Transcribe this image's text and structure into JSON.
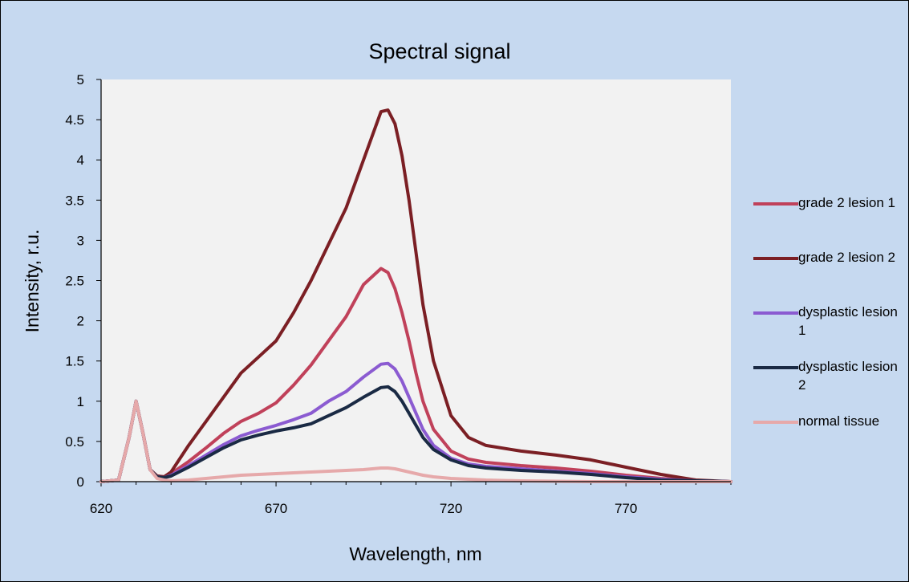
{
  "chart_data": {
    "type": "line",
    "title": "Spectral signal",
    "xlabel": "Wavelength, nm",
    "ylabel": "Intensity, r.u.",
    "xlim": [
      620,
      800
    ],
    "ylim": [
      0,
      5
    ],
    "xticks": [
      620,
      670,
      720,
      770
    ],
    "xtick_labels": [
      "620",
      "670",
      "720",
      "770"
    ],
    "yticks": [
      0,
      0.5,
      1,
      1.5,
      2,
      2.5,
      3,
      3.5,
      4,
      4.5,
      5
    ],
    "ytick_labels": [
      "0",
      "0.5",
      "1",
      "1.5",
      "2",
      "2.5",
      "3",
      "3.5",
      "4",
      "4.5",
      "5"
    ],
    "grid": false,
    "legend_position": "right",
    "plot_background": "#f2f2f2",
    "background": "#c6d9f0",
    "series": [
      {
        "name": "grade 2 lesion 1",
        "color": "#c0415a",
        "x": [
          620,
          625,
          628,
          630,
          632,
          634,
          636,
          638,
          640,
          645,
          650,
          655,
          660,
          665,
          670,
          675,
          680,
          685,
          690,
          695,
          700,
          702,
          704,
          706,
          708,
          710,
          712,
          715,
          720,
          725,
          730,
          740,
          750,
          760,
          770,
          780,
          790,
          800
        ],
        "y": [
          0,
          0.02,
          0.55,
          1.0,
          0.6,
          0.15,
          0.07,
          0.06,
          0.1,
          0.25,
          0.42,
          0.6,
          0.75,
          0.85,
          0.98,
          1.2,
          1.45,
          1.75,
          2.05,
          2.45,
          2.65,
          2.6,
          2.4,
          2.1,
          1.75,
          1.35,
          1.0,
          0.65,
          0.38,
          0.28,
          0.24,
          0.2,
          0.17,
          0.13,
          0.08,
          0.04,
          0.01,
          0
        ]
      },
      {
        "name": "grade 2 lesion 2",
        "color": "#7b1f24",
        "x": [
          620,
          625,
          628,
          630,
          632,
          634,
          636,
          638,
          640,
          645,
          650,
          655,
          660,
          665,
          670,
          675,
          680,
          685,
          690,
          695,
          700,
          702,
          704,
          706,
          708,
          710,
          712,
          715,
          720,
          725,
          730,
          740,
          750,
          760,
          770,
          780,
          790,
          800
        ],
        "y": [
          0,
          0.02,
          0.55,
          1.0,
          0.6,
          0.15,
          0.07,
          0.06,
          0.12,
          0.45,
          0.75,
          1.05,
          1.35,
          1.55,
          1.75,
          2.1,
          2.5,
          2.95,
          3.4,
          4.0,
          4.6,
          4.62,
          4.45,
          4.05,
          3.5,
          2.85,
          2.2,
          1.5,
          0.82,
          0.55,
          0.45,
          0.38,
          0.33,
          0.27,
          0.18,
          0.09,
          0.02,
          0
        ]
      },
      {
        "name": "dysplastic lesion 1",
        "color": "#8b5bd1",
        "x": [
          620,
          625,
          628,
          630,
          632,
          634,
          636,
          638,
          640,
          645,
          650,
          655,
          660,
          665,
          670,
          675,
          680,
          685,
          690,
          695,
          700,
          702,
          704,
          706,
          708,
          710,
          712,
          715,
          720,
          725,
          730,
          740,
          750,
          760,
          770,
          780,
          790,
          800
        ],
        "y": [
          0,
          0.02,
          0.55,
          1.0,
          0.6,
          0.15,
          0.06,
          0.05,
          0.08,
          0.2,
          0.33,
          0.46,
          0.57,
          0.64,
          0.7,
          0.77,
          0.85,
          1.0,
          1.12,
          1.3,
          1.46,
          1.47,
          1.4,
          1.25,
          1.05,
          0.85,
          0.65,
          0.45,
          0.29,
          0.22,
          0.19,
          0.16,
          0.13,
          0.1,
          0.06,
          0.03,
          0.01,
          0
        ]
      },
      {
        "name": "dysplastic lesion 2",
        "color": "#1a2a44",
        "x": [
          620,
          625,
          628,
          630,
          632,
          634,
          636,
          638,
          640,
          645,
          650,
          655,
          660,
          665,
          670,
          675,
          680,
          685,
          690,
          695,
          700,
          702,
          704,
          706,
          708,
          710,
          712,
          715,
          720,
          725,
          730,
          740,
          750,
          760,
          770,
          780,
          790,
          800
        ],
        "y": [
          0,
          0.02,
          0.55,
          1.0,
          0.6,
          0.15,
          0.06,
          0.05,
          0.07,
          0.18,
          0.3,
          0.42,
          0.52,
          0.58,
          0.63,
          0.67,
          0.72,
          0.82,
          0.92,
          1.05,
          1.17,
          1.18,
          1.12,
          1.0,
          0.85,
          0.7,
          0.55,
          0.4,
          0.27,
          0.2,
          0.17,
          0.14,
          0.12,
          0.09,
          0.05,
          0.02,
          0.01,
          0
        ]
      },
      {
        "name": "normal tissue",
        "color": "#e6a9aa",
        "x": [
          620,
          625,
          628,
          630,
          632,
          634,
          636,
          638,
          640,
          645,
          650,
          655,
          660,
          665,
          670,
          675,
          680,
          685,
          690,
          695,
          700,
          702,
          704,
          706,
          708,
          710,
          712,
          715,
          720,
          725,
          730,
          740,
          750,
          760,
          770,
          780,
          790,
          800
        ],
        "y": [
          0,
          0.02,
          0.55,
          1.0,
          0.6,
          0.15,
          0.04,
          0.02,
          0.01,
          0.02,
          0.04,
          0.06,
          0.08,
          0.09,
          0.1,
          0.11,
          0.12,
          0.13,
          0.14,
          0.15,
          0.17,
          0.17,
          0.16,
          0.14,
          0.12,
          0.1,
          0.08,
          0.06,
          0.04,
          0.03,
          0.02,
          0.01,
          0.005,
          0,
          0,
          0,
          0,
          0
        ]
      }
    ]
  }
}
